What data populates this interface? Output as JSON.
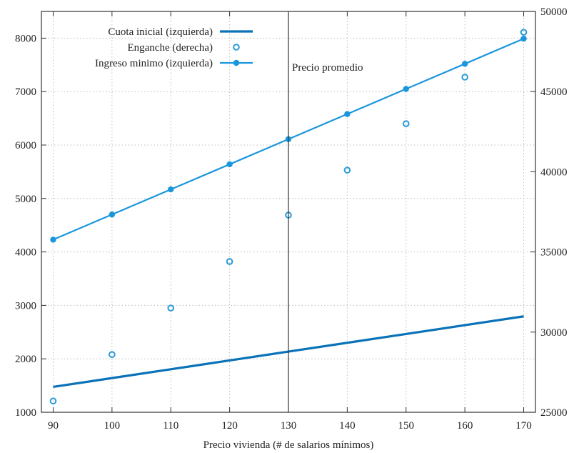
{
  "chart_data": {
    "type": "line",
    "xlabel": "Precio vivienda (# de salarios mínimos)",
    "x": [
      90,
      100,
      110,
      120,
      130,
      140,
      150,
      160,
      170
    ],
    "xlim": [
      88,
      172
    ],
    "ylim_left": [
      1000,
      8500
    ],
    "ylim_right": [
      25000,
      50000
    ],
    "x_ticks": [
      90,
      100,
      110,
      120,
      130,
      140,
      150,
      160,
      170
    ],
    "y_left_ticks": [
      1000,
      2000,
      3000,
      4000,
      5000,
      6000,
      7000,
      8000
    ],
    "y_right_ticks": [
      25000,
      30000,
      35000,
      40000,
      45000,
      50000
    ],
    "grid": true,
    "legend_position": "top-left",
    "series": [
      {
        "name": "Cuota inicial (izquierda)",
        "axis": "left",
        "style": "line",
        "color": "#0a72b8",
        "values": [
          1475,
          1640,
          1805,
          1970,
          2135,
          2300,
          2465,
          2630,
          2795
        ]
      },
      {
        "name": "Enganche  (derecha)",
        "axis": "right",
        "style": "open-circles",
        "color": "#2a9ad8",
        "values": [
          25700,
          28600,
          31500,
          34400,
          37300,
          40100,
          43000,
          45900,
          48700
        ]
      },
      {
        "name": "Ingreso minimo (izquierda)",
        "axis": "left",
        "style": "line-filled-circles",
        "color": "#1a96dd",
        "values": [
          4230,
          4700,
          5170,
          5640,
          6110,
          6580,
          7050,
          7520,
          7990
        ]
      }
    ],
    "annotations": [
      {
        "type": "vline",
        "x": 130,
        "label": "Precio promedio",
        "color": "#333333"
      }
    ]
  }
}
